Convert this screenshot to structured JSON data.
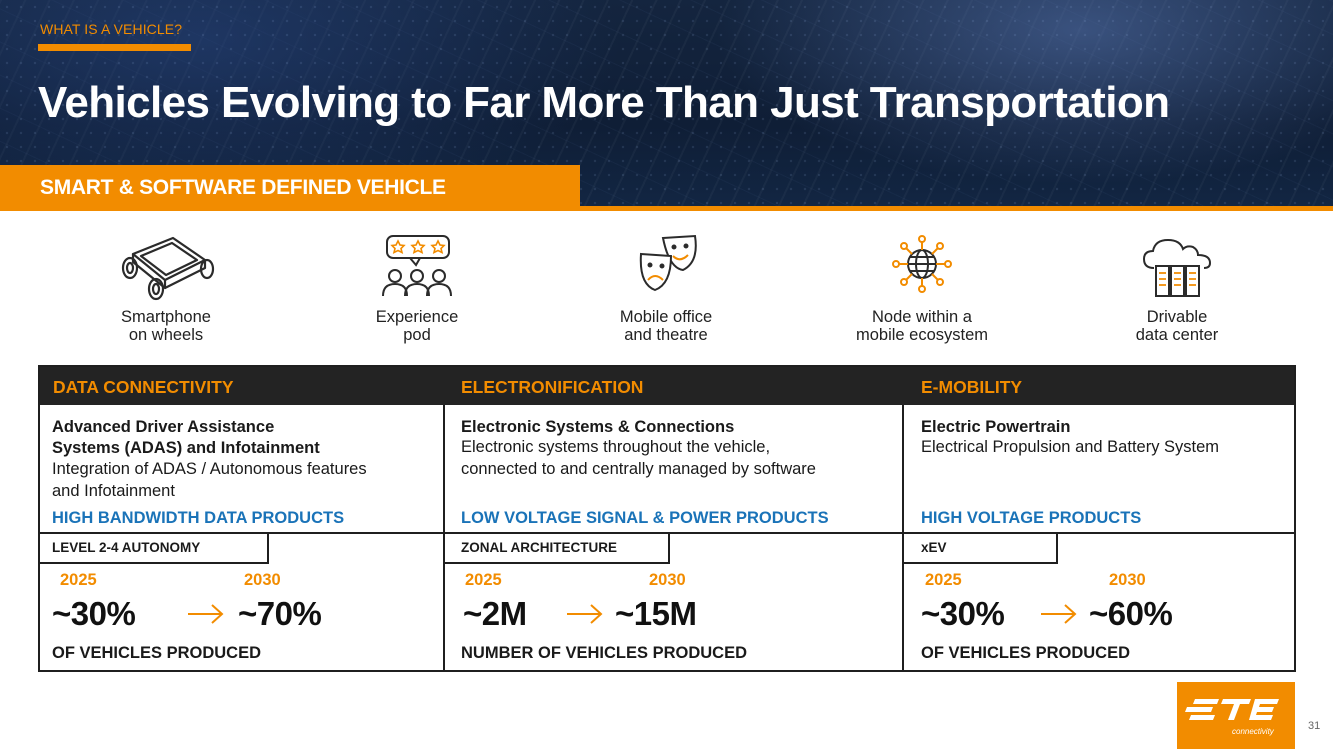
{
  "header": {
    "eyebrow": "WHAT IS A VEHICLE?",
    "title": "Vehicles Evolving to Far More Than Just Transportation",
    "band": "SMART & SOFTWARE DEFINED VEHICLE"
  },
  "concepts": [
    {
      "icon": "smartphone-car-icon",
      "label": "Smartphone\non wheels"
    },
    {
      "icon": "audience-rating-icon",
      "label": "Experience\npod"
    },
    {
      "icon": "theatre-masks-icon",
      "label": "Mobile office\nand theatre"
    },
    {
      "icon": "globe-network-icon",
      "label": "Node within a\nmobile ecosystem"
    },
    {
      "icon": "cloud-server-icon",
      "label": "Drivable\ndata center"
    }
  ],
  "columns": [
    {
      "header": "DATA CONNECTIVITY",
      "title": "Advanced Driver Assistance\nSystems (ADAS) and Infotainment",
      "description": "Integration of ADAS / Autonomous features\nand Infotainment",
      "products": "HIGH BANDWIDTH DATA PRODUCTS",
      "tag": "LEVEL 2-4 AUTONOMY",
      "year_from": "2025",
      "year_to": "2030",
      "value_from": "~30%",
      "value_to": "~70%",
      "footer": "OF VEHICLES PRODUCED"
    },
    {
      "header": "ELECTRONIFICATION",
      "title": "Electronic Systems & Connections",
      "description": "Electronic systems throughout the vehicle,\nconnected to and centrally managed by software",
      "products": "LOW VOLTAGE SIGNAL & POWER PRODUCTS",
      "tag": "ZONAL ARCHITECTURE",
      "year_from": "2025",
      "year_to": "2030",
      "value_from": "~2M",
      "value_to": "~15M",
      "footer": "NUMBER OF VEHICLES PRODUCED"
    },
    {
      "header": "E-MOBILITY",
      "title": "Electric Powertrain",
      "description": "Electrical Propulsion and Battery System",
      "products": "HIGH VOLTAGE PRODUCTS",
      "tag": "xEV",
      "year_from": "2025",
      "year_to": "2030",
      "value_from": "~30%",
      "value_to": "~60%",
      "footer": "OF VEHICLES PRODUCED"
    }
  ],
  "logo": {
    "sub": "connectivity"
  },
  "page_number": "31",
  "colors": {
    "accent": "#f28c00",
    "product_blue": "#1a73b8",
    "header_dark": "#232323",
    "navy": "#14253f"
  }
}
